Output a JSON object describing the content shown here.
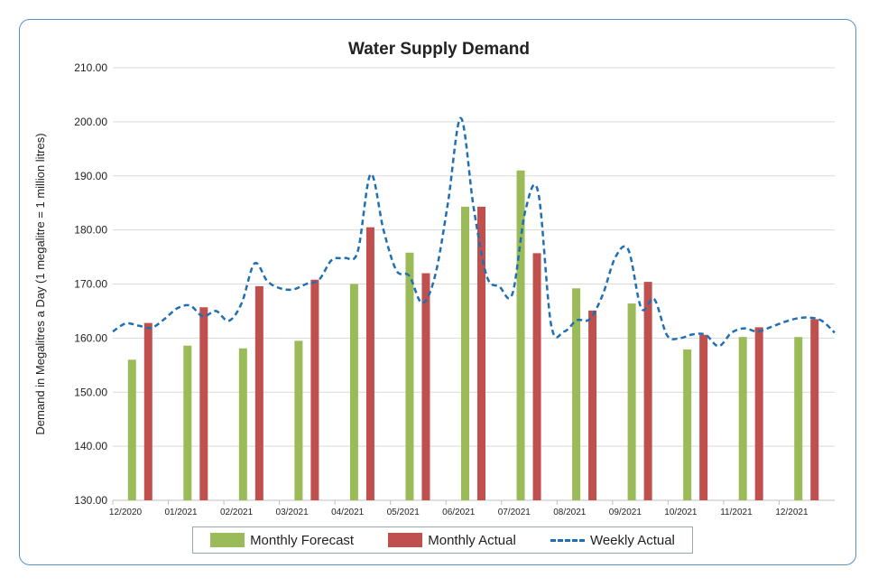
{
  "chart_data": {
    "type": "bar",
    "title": "Water Supply Demand",
    "xlabel": "",
    "ylabel": "Demand in Megalitres a Day (1 megalitre = 1 million litres)",
    "ylim": [
      130,
      210
    ],
    "yticks": [
      "130.00",
      "140.00",
      "150.00",
      "160.00",
      "170.00",
      "180.00",
      "190.00",
      "200.00",
      "210.00"
    ],
    "xticks": [
      "12/2020",
      "01/2021",
      "02/2021",
      "03/2021",
      "04/2021",
      "05/2021",
      "06/2021",
      "07/2021",
      "08/2021",
      "09/2021",
      "10/2021",
      "11/2021",
      "12/2021"
    ],
    "grid": true,
    "legend_position": "bottom",
    "colors": {
      "forecast": "#9bbb59",
      "actual": "#c0504d",
      "weekly": "#1f6fb5",
      "grid": "#d9d9d9",
      "border": "#5b8fc9"
    },
    "series": [
      {
        "name": "Monthly Forecast",
        "type": "bar",
        "categories": [
          "12/2020",
          "01/2021",
          "02/2021",
          "03/2021",
          "04/2021",
          "05/2021",
          "06/2021",
          "07/2021",
          "08/2021",
          "09/2021",
          "10/2021",
          "11/2021",
          "12/2021"
        ],
        "values": [
          156.0,
          158.6,
          158.1,
          159.5,
          170.0,
          175.8,
          184.3,
          191.0,
          169.2,
          166.4,
          157.9,
          160.2,
          160.2
        ]
      },
      {
        "name": "Monthly Actual",
        "type": "bar",
        "categories": [
          "12/2020",
          "01/2021",
          "02/2021",
          "03/2021",
          "04/2021",
          "05/2021",
          "06/2021",
          "07/2021",
          "08/2021",
          "09/2021",
          "10/2021",
          "11/2021",
          "12/2021"
        ],
        "values": [
          162.8,
          165.7,
          169.6,
          170.8,
          180.5,
          172.0,
          184.3,
          175.7,
          165.1,
          170.4,
          160.6,
          162.0,
          163.5
        ]
      },
      {
        "name": "Weekly Actual",
        "type": "line",
        "style": "dashed",
        "values": [
          161.2,
          162.7,
          162.3,
          161.9,
          163.5,
          165.5,
          166.0,
          164.0,
          165.0,
          163.2,
          166.5,
          173.8,
          170.5,
          169.2,
          169.0,
          170.0,
          170.8,
          174.5,
          174.8,
          176.0,
          190.3,
          180.0,
          172.5,
          171.5,
          166.5,
          171.5,
          185.0,
          200.7,
          184.0,
          171.5,
          169.5,
          168.2,
          183.5,
          187.0,
          162.5,
          161.2,
          163.3,
          163.5,
          168.0,
          175.0,
          176.3,
          165.5,
          167.2,
          160.5,
          160.0,
          160.7,
          160.6,
          158.5,
          161.0,
          161.8,
          161.2,
          162.0,
          162.9,
          163.6,
          163.8,
          163.2,
          161.0
        ]
      }
    ]
  }
}
